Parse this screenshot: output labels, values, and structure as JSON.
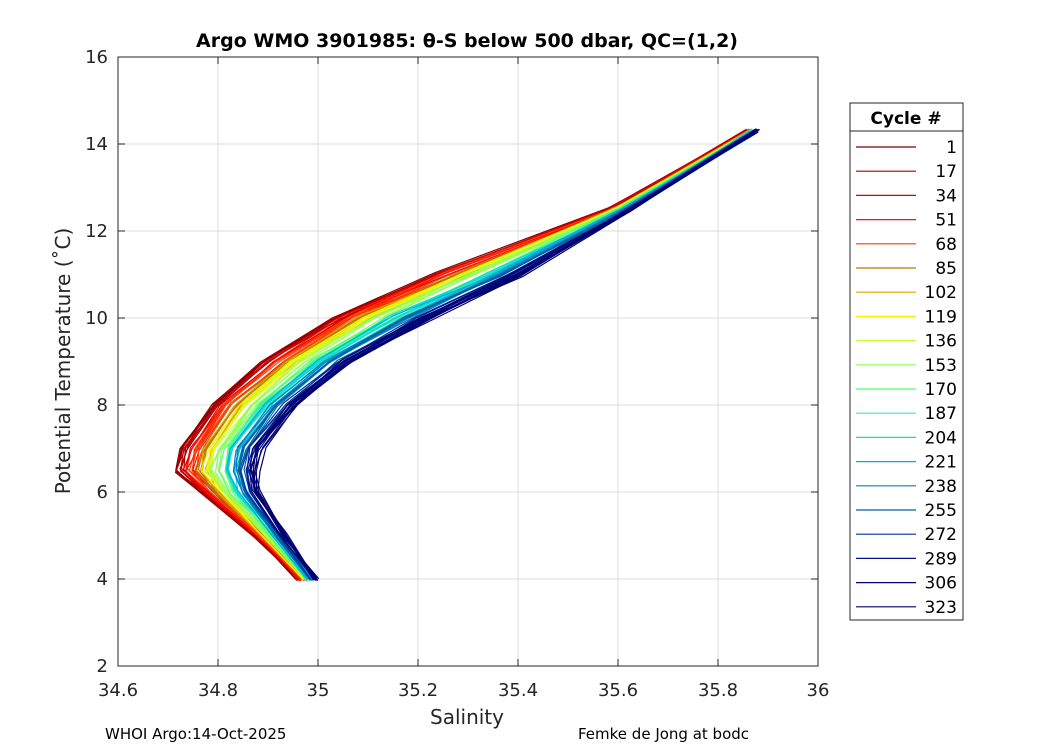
{
  "chart_data": {
    "type": "line",
    "title": "Argo WMO 3901985: θ-S below 500 dbar,  QC=(1,2)",
    "xlabel": "Salinity",
    "ylabel": "Potential Temperature (˚C)",
    "xlim": [
      34.6,
      36
    ],
    "ylim": [
      2,
      16
    ],
    "xticks": [
      "34.6",
      "34.8",
      "35",
      "35.2",
      "35.4",
      "35.6",
      "35.8",
      "36"
    ],
    "yticks": [
      "2",
      "4",
      "6",
      "8",
      "10",
      "12",
      "14",
      "16"
    ],
    "grid": true,
    "legend_title": "Cycle #",
    "legend_position": "right-outside",
    "colormap": "jet",
    "series": [
      {
        "name": "1",
        "color": "#800000"
      },
      {
        "name": "17",
        "color": "#a80000"
      },
      {
        "name": "34",
        "color": "#d80000"
      },
      {
        "name": "51",
        "color": "#ff1000"
      },
      {
        "name": "68",
        "color": "#ff3c00"
      },
      {
        "name": "85",
        "color": "#b87a00"
      },
      {
        "name": "102",
        "color": "#d8a800"
      },
      {
        "name": "119",
        "color": "#ffee00"
      },
      {
        "name": "136",
        "color": "#ccff30"
      },
      {
        "name": "153",
        "color": "#8cff60"
      },
      {
        "name": "170",
        "color": "#50ff70"
      },
      {
        "name": "187",
        "color": "#30f0b0"
      },
      {
        "name": "204",
        "color": "#10d8d8"
      },
      {
        "name": "221",
        "color": "#00b0e0"
      },
      {
        "name": "238",
        "color": "#0080c0"
      },
      {
        "name": "255",
        "color": "#0060a0"
      },
      {
        "name": "272",
        "color": "#0030a0"
      },
      {
        "name": "289",
        "color": "#001090"
      },
      {
        "name": "306",
        "color": "#000070"
      },
      {
        "name": "323",
        "color": "#000070"
      }
    ],
    "curve_envelope": [
      {
        "temperature": 14.3,
        "salinity_low": 35.86,
        "salinity_high": 35.88
      },
      {
        "temperature": 12.5,
        "salinity_low": 35.58,
        "salinity_high": 35.63
      },
      {
        "temperature": 11.0,
        "salinity_low": 35.22,
        "salinity_high": 35.42
      },
      {
        "temperature": 10.0,
        "salinity_low": 35.02,
        "salinity_high": 35.24
      },
      {
        "temperature": 9.0,
        "salinity_low": 34.88,
        "salinity_high": 35.08
      },
      {
        "temperature": 8.0,
        "salinity_low": 34.78,
        "salinity_high": 34.97
      },
      {
        "temperature": 7.0,
        "salinity_low": 34.72,
        "salinity_high": 34.9
      },
      {
        "temperature": 6.5,
        "salinity_low": 34.71,
        "salinity_high": 34.89
      },
      {
        "temperature": 6.0,
        "salinity_low": 34.76,
        "salinity_high": 34.89
      },
      {
        "temperature": 5.0,
        "salinity_low": 34.87,
        "salinity_high": 34.94
      },
      {
        "temperature": 4.0,
        "salinity_low": 34.96,
        "salinity_high": 35.0
      }
    ]
  },
  "footer": {
    "left": "WHOI Argo:14-Oct-2025",
    "right": "Femke de Jong at bodc"
  }
}
